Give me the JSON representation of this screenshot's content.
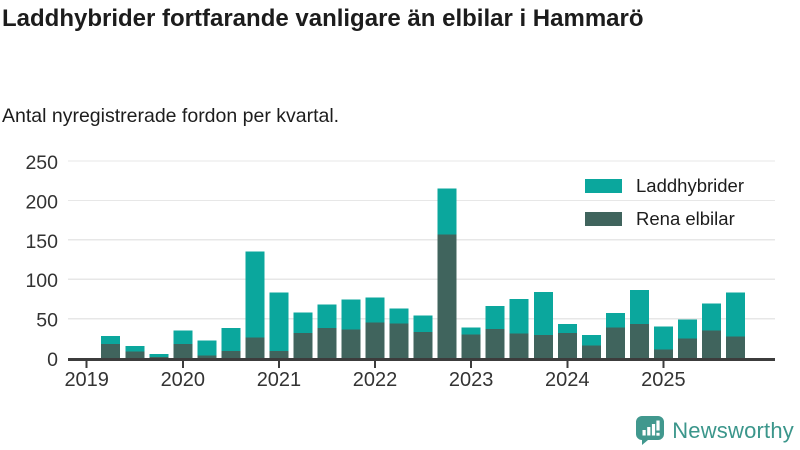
{
  "header": {
    "title": "Laddhybrider fortfarande vanligare än elbilar i Hammarö",
    "subtitle": "Antal nyregistrerade fordon per kvartal."
  },
  "legend": [
    {
      "label": "Laddhybrider",
      "color": "#0ba79d"
    },
    {
      "label": "Rena elbilar",
      "color": "#40645d"
    }
  ],
  "chart_data": {
    "type": "bar",
    "stacked": true,
    "title": "Laddhybrider fortfarande vanligare än elbilar i Hammarö",
    "subtitle": "Antal nyregistrerade fordon per kvartal.",
    "x_unit": "quarter",
    "categories": [
      "2019 Q1",
      "2019 Q2",
      "2019 Q3",
      "2019 Q4",
      "2020 Q1",
      "2020 Q2",
      "2020 Q3",
      "2020 Q4",
      "2021 Q1",
      "2021 Q2",
      "2021 Q3",
      "2021 Q4",
      "2022 Q1",
      "2022 Q2",
      "2022 Q3",
      "2022 Q4",
      "2023 Q1",
      "2023 Q2",
      "2023 Q3",
      "2023 Q4",
      "2024 Q1",
      "2024 Q2",
      "2024 Q3",
      "2024 Q4",
      "2025 Q1",
      "2025 Q2",
      "2025 Q3",
      "2025 Q4"
    ],
    "series": [
      {
        "name": "Rena elbilar",
        "color": "#40645d",
        "stack_position": "bottom",
        "values": [
          0,
          18,
          8,
          1,
          18,
          3,
          9,
          26,
          9,
          32,
          38,
          36,
          45,
          44,
          33,
          157,
          30,
          37,
          31,
          29,
          32,
          16,
          39,
          43,
          11,
          25,
          35,
          27
        ]
      },
      {
        "name": "Laddhybrider",
        "color": "#0ba79d",
        "stack_position": "top",
        "values": [
          0,
          10,
          7,
          4,
          17,
          19,
          29,
          109,
          74,
          26,
          30,
          38,
          32,
          19,
          21,
          58,
          9,
          29,
          44,
          55,
          11,
          13,
          18,
          43,
          29,
          24,
          34,
          56
        ]
      }
    ],
    "totals": [
      0,
      28,
      15,
      5,
      35,
      22,
      38,
      135,
      83,
      58,
      68,
      74,
      77,
      63,
      54,
      215,
      39,
      66,
      75,
      84,
      43,
      29,
      57,
      86,
      40,
      49,
      69,
      83
    ],
    "year_ticks": [
      "2019",
      "2020",
      "2021",
      "2022",
      "2023",
      "2024",
      "2025"
    ],
    "yticks": [
      0,
      50,
      100,
      150,
      200,
      250
    ],
    "ylim": [
      0,
      250
    ],
    "grid": "horizontal",
    "legend_position": "top-right"
  },
  "footer": {
    "brand": "Newsworthy",
    "logo_icon": "bar-chart-speech-bubble"
  },
  "colors": {
    "laddhybrider": "#0ba79d",
    "rena_elbilar": "#40645d",
    "axis_line": "#3c3c3c",
    "gridline": "#e7e7e7",
    "tick_text": "#333333",
    "title_text": "#1c1c1c",
    "brand": "#3b968b",
    "background": "#ffffff"
  }
}
